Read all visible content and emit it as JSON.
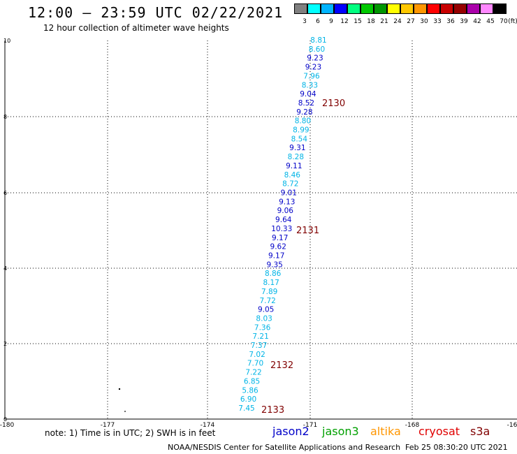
{
  "title": "12:00 – 23:59 UTC 02/22/2021",
  "subtitle": "12 hour collection of altimeter wave heights",
  "colorbar": {
    "unit": "(ft)",
    "labels": [
      "3",
      "6",
      "9",
      "12",
      "15",
      "18",
      "21",
      "24",
      "27",
      "30",
      "33",
      "36",
      "39",
      "42",
      "45",
      "70"
    ],
    "colors": [
      "#808080",
      "#00ffff",
      "#00b4ff",
      "#0000ff",
      "#00ff80",
      "#00c800",
      "#009600",
      "#ffff00",
      "#ffc800",
      "#ff9600",
      "#ff0000",
      "#c80000",
      "#960000",
      "#aa00aa",
      "#ff88ff",
      "#000000"
    ]
  },
  "axes": {
    "x_ticks": [
      "-180",
      "-177",
      "-174",
      "-171",
      "-168",
      "-16"
    ],
    "y_ticks": [
      "10",
      "8",
      "6",
      "4",
      "2",
      "0"
    ]
  },
  "track_colors": {
    "cyan": "#00b4e6",
    "blue": "#0000c8",
    "label": "#800000"
  },
  "wave_points": [
    {
      "v": "8.81",
      "c": "cyan"
    },
    {
      "v": "8.60",
      "c": "cyan"
    },
    {
      "v": "9.23",
      "c": "blue"
    },
    {
      "v": "9.23",
      "c": "blue"
    },
    {
      "v": "7.96",
      "c": "cyan"
    },
    {
      "v": "8.33",
      "c": "cyan"
    },
    {
      "v": "9.04",
      "c": "blue"
    },
    {
      "v": "8.52",
      "c": "blue"
    },
    {
      "v": "9.28",
      "c": "blue"
    },
    {
      "v": "8.80",
      "c": "cyan"
    },
    {
      "v": "8.99",
      "c": "cyan"
    },
    {
      "v": "8.54",
      "c": "cyan"
    },
    {
      "v": "9.31",
      "c": "blue"
    },
    {
      "v": "8.28",
      "c": "cyan"
    },
    {
      "v": "9.11",
      "c": "blue"
    },
    {
      "v": "8.46",
      "c": "cyan"
    },
    {
      "v": "8.72",
      "c": "cyan"
    },
    {
      "v": "9.01",
      "c": "blue"
    },
    {
      "v": "9.13",
      "c": "blue"
    },
    {
      "v": "9.06",
      "c": "blue"
    },
    {
      "v": "9.64",
      "c": "blue"
    },
    {
      "v": "10.33",
      "c": "blue"
    },
    {
      "v": "9.17",
      "c": "blue"
    },
    {
      "v": "9.62",
      "c": "blue"
    },
    {
      "v": "9.17",
      "c": "blue"
    },
    {
      "v": "9.35",
      "c": "blue"
    },
    {
      "v": "8.86",
      "c": "cyan"
    },
    {
      "v": "8.17",
      "c": "cyan"
    },
    {
      "v": "7.89",
      "c": "cyan"
    },
    {
      "v": "7.72",
      "c": "cyan"
    },
    {
      "v": "9.05",
      "c": "blue"
    },
    {
      "v": "8.03",
      "c": "cyan"
    },
    {
      "v": "7.36",
      "c": "cyan"
    },
    {
      "v": "7.21",
      "c": "cyan"
    },
    {
      "v": "7.37",
      "c": "cyan"
    },
    {
      "v": "7.02",
      "c": "cyan"
    },
    {
      "v": "7.70",
      "c": "cyan"
    },
    {
      "v": "7.22",
      "c": "cyan"
    },
    {
      "v": "6.85",
      "c": "cyan"
    },
    {
      "v": "5.86",
      "c": "cyan"
    },
    {
      "v": "6.90",
      "c": "cyan"
    },
    {
      "v": "7.45",
      "c": "cyan"
    }
  ],
  "time_labels": [
    "2130",
    "2131",
    "2132",
    "2133"
  ],
  "note": "note: 1) Time is in UTC; 2) SWH is in feet",
  "missions": [
    {
      "name": "jason2",
      "color": "#0000c8"
    },
    {
      "name": "jason3",
      "color": "#00a000"
    },
    {
      "name": "altika",
      "color": "#ff9600"
    },
    {
      "name": "cryosat",
      "color": "#e00000"
    },
    {
      "name": "s3a",
      "color": "#800000"
    }
  ],
  "footer": {
    "agency": "NOAA/NESDIS Center for Satellite Applications and Research",
    "timestamp": "Feb 25 08:30:20 UTC 2021"
  }
}
